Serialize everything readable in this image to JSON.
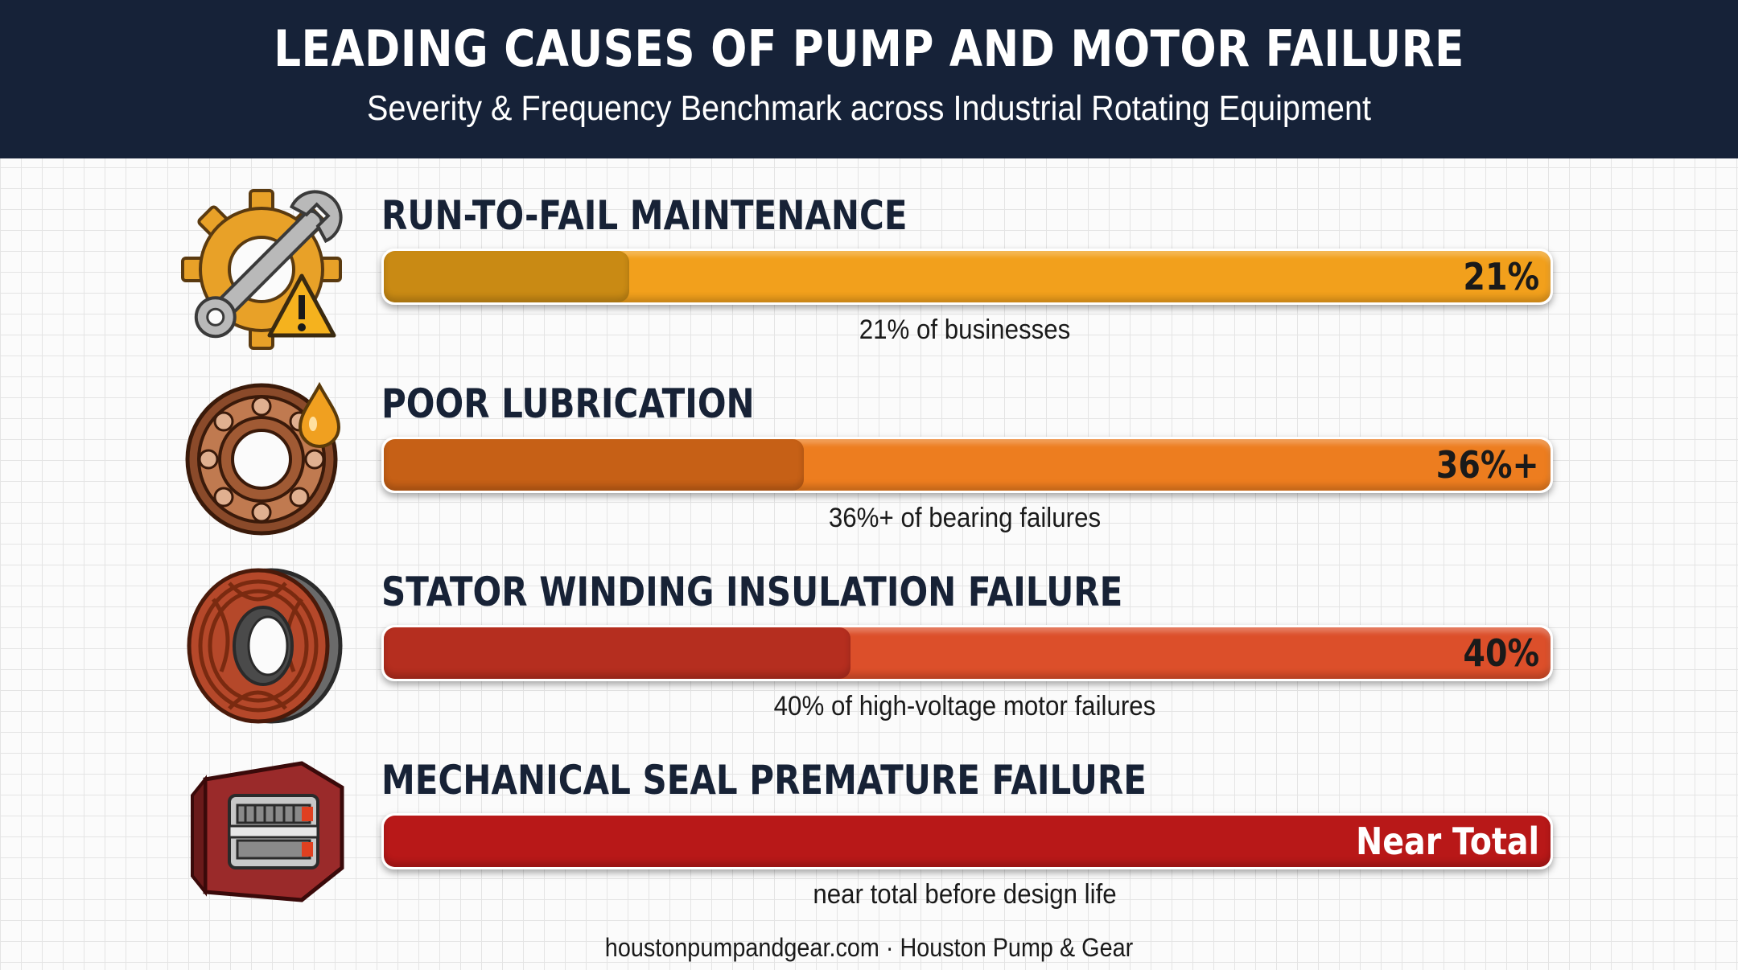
{
  "header": {
    "title": "LEADING CAUSES OF PUMP AND MOTOR FAILURE",
    "subtitle": "Severity & Frequency Benchmark across Industrial Rotating Equipment"
  },
  "colors": {
    "header_bg": "#162238",
    "bar_1": "#f2a01c",
    "bar_1_dark": "#c98a14",
    "bar_2": "#ed7d1f",
    "bar_2_dark": "#c66016",
    "bar_3": "#dc4f2a",
    "bar_3_dark": "#b52e1f",
    "bar_4": "#d4201f",
    "bar_4_dark": "#b81818"
  },
  "chart_data": {
    "type": "bar",
    "orientation": "horizontal",
    "title": "LEADING CAUSES OF PUMP AND MOTOR FAILURE",
    "subtitle": "Severity & Frequency Benchmark across Industrial Rotating Equipment",
    "categories": [
      "RUN-TO-FAIL MAINTENANCE",
      "POOR LUBRICATION",
      "STATOR WINDING INSULATION FAILURE",
      "MECHANICAL SEAL PREMATURE FAILURE"
    ],
    "value_labels": [
      "21%",
      "36%+",
      "40%",
      "Near Total"
    ],
    "values": [
      21,
      36,
      40,
      100
    ],
    "notes": [
      "21% of businesses",
      "36%+ of bearing failures",
      "40% of high-voltage motor failures",
      "near total before design life"
    ],
    "icons": [
      "wrench-gear-warning-icon",
      "bearing-oil-drop-icon",
      "stator-winding-icon",
      "mechanical-seal-icon"
    ],
    "ylim": [
      0,
      100
    ],
    "grid": true,
    "legend": "none"
  },
  "footer": {
    "text": "houstonpumpandgear.com · Houston Pump & Gear"
  }
}
